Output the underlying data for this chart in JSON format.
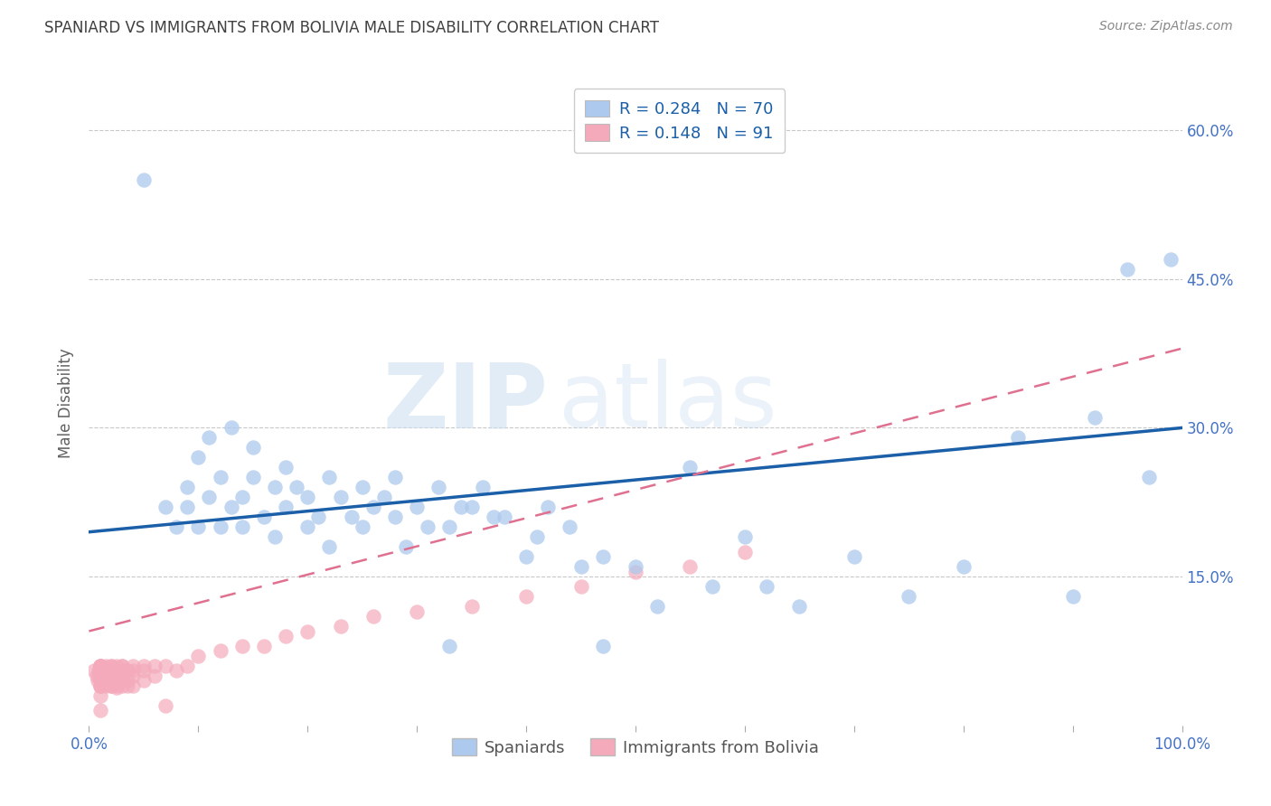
{
  "title": "SPANIARD VS IMMIGRANTS FROM BOLIVIA MALE DISABILITY CORRELATION CHART",
  "source_text": "Source: ZipAtlas.com",
  "ylabel": "Male Disability",
  "watermark_zip": "ZIP",
  "watermark_atlas": "atlas",
  "legend_r1": "R = 0.284",
  "legend_n1": "N = 70",
  "legend_r2": "R = 0.148",
  "legend_n2": "N = 91",
  "blue_scatter_color": "#adc9ed",
  "pink_scatter_color": "#f4aabb",
  "blue_line_color": "#1a5fa8",
  "pink_line_color": "#e07090",
  "title_color": "#404040",
  "axis_tick_color": "#4472c4",
  "ylabel_color": "#606060",
  "legend_text_color": "#1a5fa8",
  "grid_color": "#c8c8c8",
  "background_color": "#ffffff",
  "xlim": [
    0.0,
    1.0
  ],
  "ylim": [
    0.0,
    0.65
  ],
  "xtick_vals": [
    0.0,
    0.1,
    0.2,
    0.3,
    0.4,
    0.5,
    0.6,
    0.7,
    0.8,
    0.9,
    1.0
  ],
  "xtick_labels": [
    "0.0%",
    "",
    "",
    "",
    "",
    "",
    "",
    "",
    "",
    "",
    "100.0%"
  ],
  "ytick_vals": [
    0.0,
    0.15,
    0.3,
    0.45,
    0.6
  ],
  "ytick_labels": [
    "",
    "15.0%",
    "30.0%",
    "45.0%",
    "60.0%"
  ],
  "blue_scatter_x": [
    0.05,
    0.07,
    0.08,
    0.09,
    0.09,
    0.1,
    0.1,
    0.11,
    0.11,
    0.12,
    0.12,
    0.13,
    0.13,
    0.14,
    0.14,
    0.15,
    0.15,
    0.16,
    0.17,
    0.17,
    0.18,
    0.18,
    0.19,
    0.2,
    0.2,
    0.21,
    0.22,
    0.22,
    0.23,
    0.24,
    0.25,
    0.25,
    0.26,
    0.27,
    0.28,
    0.28,
    0.29,
    0.3,
    0.31,
    0.32,
    0.33,
    0.34,
    0.35,
    0.36,
    0.37,
    0.38,
    0.4,
    0.41,
    0.42,
    0.44,
    0.45,
    0.47,
    0.5,
    0.52,
    0.55,
    0.57,
    0.6,
    0.62,
    0.65,
    0.7,
    0.75,
    0.8,
    0.85,
    0.9,
    0.92,
    0.95,
    0.97,
    0.99,
    0.33,
    0.47
  ],
  "blue_scatter_y": [
    0.55,
    0.22,
    0.2,
    0.24,
    0.22,
    0.2,
    0.27,
    0.23,
    0.29,
    0.2,
    0.25,
    0.22,
    0.3,
    0.23,
    0.2,
    0.25,
    0.28,
    0.21,
    0.19,
    0.24,
    0.22,
    0.26,
    0.24,
    0.2,
    0.23,
    0.21,
    0.18,
    0.25,
    0.23,
    0.21,
    0.2,
    0.24,
    0.22,
    0.23,
    0.21,
    0.25,
    0.18,
    0.22,
    0.2,
    0.24,
    0.2,
    0.22,
    0.22,
    0.24,
    0.21,
    0.21,
    0.17,
    0.19,
    0.22,
    0.2,
    0.16,
    0.17,
    0.16,
    0.12,
    0.26,
    0.14,
    0.19,
    0.14,
    0.12,
    0.17,
    0.13,
    0.16,
    0.29,
    0.13,
    0.31,
    0.46,
    0.25,
    0.47,
    0.08,
    0.08
  ],
  "pink_scatter_x": [
    0.005,
    0.007,
    0.008,
    0.009,
    0.01,
    0.01,
    0.01,
    0.01,
    0.01,
    0.01,
    0.01,
    0.01,
    0.01,
    0.01,
    0.01,
    0.01,
    0.01,
    0.01,
    0.01,
    0.01,
    0.01,
    0.01,
    0.01,
    0.01,
    0.01,
    0.01,
    0.01,
    0.015,
    0.015,
    0.015,
    0.015,
    0.015,
    0.015,
    0.015,
    0.02,
    0.02,
    0.02,
    0.02,
    0.02,
    0.02,
    0.02,
    0.02,
    0.02,
    0.02,
    0.025,
    0.025,
    0.025,
    0.025,
    0.025,
    0.025,
    0.025,
    0.025,
    0.03,
    0.03,
    0.03,
    0.03,
    0.03,
    0.03,
    0.03,
    0.035,
    0.035,
    0.035,
    0.04,
    0.04,
    0.04,
    0.04,
    0.05,
    0.05,
    0.05,
    0.06,
    0.06,
    0.07,
    0.08,
    0.09,
    0.1,
    0.12,
    0.14,
    0.16,
    0.18,
    0.2,
    0.23,
    0.26,
    0.3,
    0.35,
    0.4,
    0.45,
    0.5,
    0.55,
    0.6,
    0.07,
    0.01
  ],
  "pink_scatter_y": [
    0.055,
    0.05,
    0.045,
    0.055,
    0.05,
    0.06,
    0.045,
    0.055,
    0.05,
    0.04,
    0.055,
    0.06,
    0.05,
    0.045,
    0.055,
    0.06,
    0.05,
    0.04,
    0.055,
    0.06,
    0.05,
    0.045,
    0.055,
    0.06,
    0.05,
    0.04,
    0.03,
    0.055,
    0.045,
    0.06,
    0.05,
    0.04,
    0.055,
    0.045,
    0.06,
    0.05,
    0.04,
    0.055,
    0.045,
    0.06,
    0.05,
    0.04,
    0.055,
    0.045,
    0.055,
    0.045,
    0.06,
    0.05,
    0.04,
    0.055,
    0.045,
    0.038,
    0.06,
    0.05,
    0.04,
    0.055,
    0.045,
    0.06,
    0.05,
    0.055,
    0.045,
    0.04,
    0.06,
    0.05,
    0.04,
    0.055,
    0.055,
    0.045,
    0.06,
    0.06,
    0.05,
    0.06,
    0.055,
    0.06,
    0.07,
    0.075,
    0.08,
    0.08,
    0.09,
    0.095,
    0.1,
    0.11,
    0.115,
    0.12,
    0.13,
    0.14,
    0.155,
    0.16,
    0.175,
    0.02,
    0.015
  ],
  "figsize": [
    14.06,
    8.92
  ],
  "dpi": 100
}
